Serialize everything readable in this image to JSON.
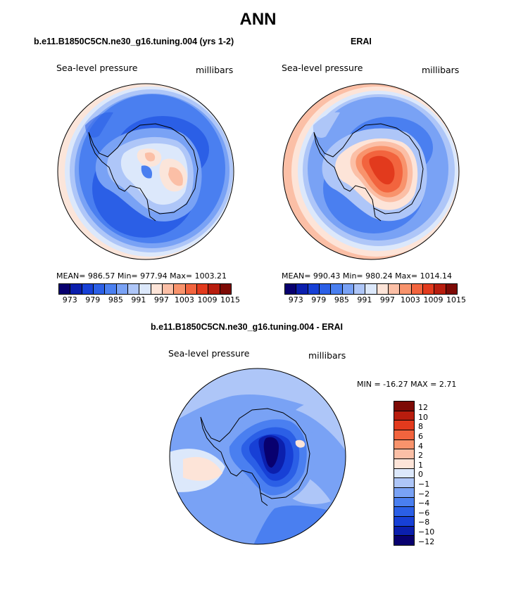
{
  "title": "ANN",
  "panels": [
    {
      "title": "b.e11.B1850C5CN.ne30_g16.tuning.004 (yrs 1-2)",
      "variable": "Sea-level pressure",
      "units": "millibars",
      "stats": "MEAN= 986.57    Min= 977.94    Max= 1003.21"
    },
    {
      "title": "ERAI",
      "variable": "Sea-level pressure",
      "units": "millibars",
      "stats": "MEAN= 990.43    Min= 980.24    Max= 1014.14"
    },
    {
      "title": "b.e11.B1850C5CN.ne30_g16.tuning.004 - ERAI",
      "variable": "Sea-level pressure",
      "units": "millibars",
      "stats": "MIN = -16.27  MAX =    2.71"
    }
  ],
  "colorbar_abs": {
    "colors": [
      "#08006f",
      "#0b1fad",
      "#1740d6",
      "#2b5fe6",
      "#4a7ff0",
      "#79a2f5",
      "#aec6f8",
      "#dce8fb",
      "#fde4d8",
      "#fbbfa6",
      "#f8936c",
      "#f2643e",
      "#e23a1d",
      "#b81d0e",
      "#7d0a05"
    ],
    "tick_labels": [
      "973",
      "979",
      "985",
      "991",
      "997",
      "1003",
      "1009",
      "1015"
    ]
  },
  "colorbar_diff": {
    "colors": [
      "#7d0a05",
      "#b81d0e",
      "#e23a1d",
      "#f2643e",
      "#f8936c",
      "#fbbfa6",
      "#fde4d8",
      "#dce8fb",
      "#aec6f8",
      "#79a2f5",
      "#4a7ff0",
      "#2b5fe6",
      "#1740d6",
      "#0b1fad",
      "#08006f"
    ],
    "tick_labels": [
      "12",
      "10",
      "8",
      "6",
      "4",
      "2",
      "1",
      "0",
      "−1",
      "−2",
      "−4",
      "−6",
      "−8",
      "−10",
      "−12"
    ]
  }
}
